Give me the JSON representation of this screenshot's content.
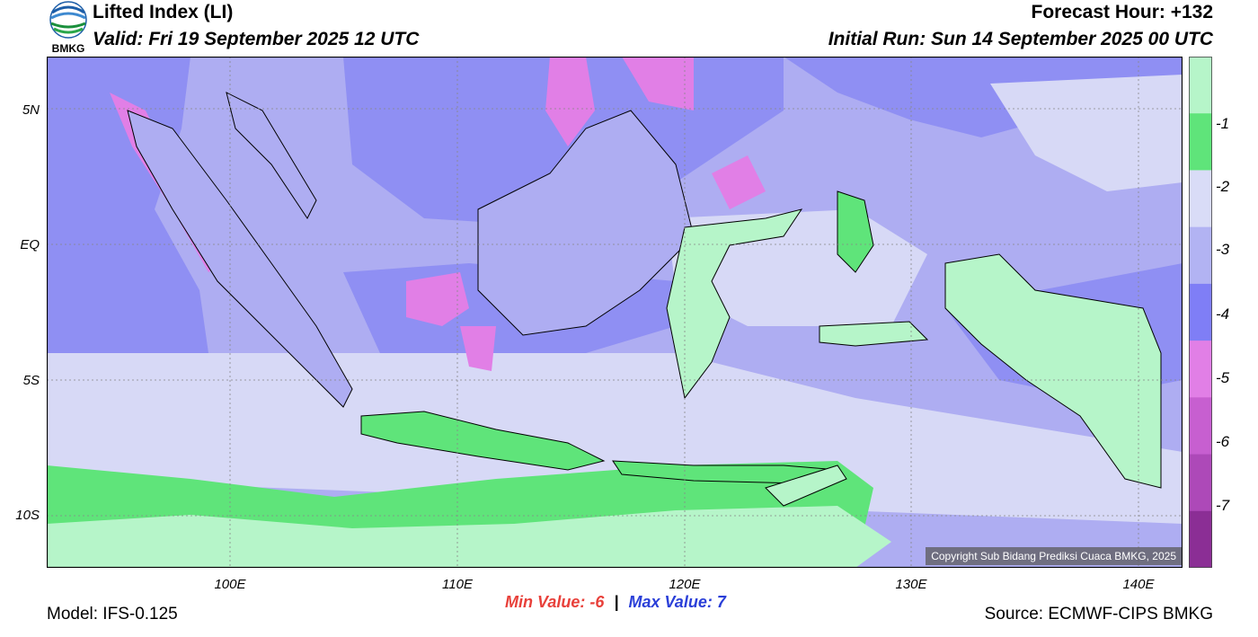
{
  "header": {
    "title": "Lifted Index (LI)",
    "valid": "Valid: Fri 19 September 2025 12 UTC",
    "forecast_hour": "Forecast Hour: +132",
    "initial_run": "Initial Run: Sun 14 September 2025 00 UTC"
  },
  "logo": {
    "text": "BMKG"
  },
  "map": {
    "y_labels": [
      "5N",
      "EQ",
      "5S",
      "10S"
    ],
    "x_labels": [
      "100E",
      "110E",
      "120E",
      "130E",
      "140E"
    ],
    "copyright": "Copyright Sub Bidang Prediksi Cuaca BMKG, 2025"
  },
  "stats": {
    "min_label": "Min Value:",
    "min_value": "-6",
    "max_label": "Max Value:",
    "max_value": "7"
  },
  "footer": {
    "model": "Model: IFS-0.125",
    "source": "Source: ECMWF-CIPS BMKG"
  },
  "colorbar": {
    "labels": [
      "-1",
      "-2",
      "-3",
      "-4",
      "-5",
      "-6",
      "-7"
    ],
    "colors": [
      "#b6f5c9",
      "#5fe47a",
      "#d9dcf7",
      "#b2b3f3",
      "#7f7ef6",
      "#e17fe6",
      "#c75fd0",
      "#ad49b8",
      "#8b2e95"
    ]
  },
  "palette": {
    "ocean_deep": "#8f8ff3",
    "ocean_mid": "#aeadf2",
    "ocean_light": "#d7d9f6",
    "land_green": "#5fe47a",
    "light_green": "#b6f5c9",
    "magenta": "#e17fe6",
    "coast": "#000000"
  }
}
